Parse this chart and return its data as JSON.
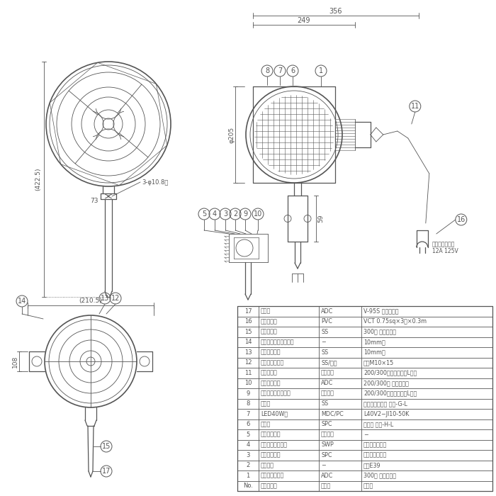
{
  "bg_color": "#ffffff",
  "line_color": "#555555",
  "table_data": [
    [
      "17",
      "バイス",
      "ADC",
      "V-95S グレー履装"
    ],
    [
      "16",
      "電源コード",
      "PVC",
      "VCT 0.75sq×3芯×0.3m"
    ],
    [
      "15",
      "本体取付枚",
      "SS",
      "300型 グレー履装"
    ],
    [
      "14",
      "スプリングワッシャー",
      "−",
      "10mm用"
    ],
    [
      "13",
      "平ワッシャー",
      "SS",
      "10mm用"
    ],
    [
      "12",
      "角度調節ツマミ",
      "SS/樹脂",
      "ノブM10×15"
    ],
    [
      "11",
      "ブッシング",
      "シリコン",
      "200/300型トウ、トウL共通"
    ],
    [
      "10",
      "線止めナット",
      "ADC",
      "200/300型 グレー履装"
    ],
    [
      "9",
      "線止めゴムパッキン",
      "合成ゴム",
      "200/300型トウ、トウL共通"
    ],
    [
      "8",
      "ガード",
      "SS",
      "三価クロメート トウ-G-L"
    ],
    [
      "7",
      "LED40W球",
      "MDC/PC",
      "L40V2−JI10-50K"
    ],
    [
      "6",
      "フード",
      "SPC",
      "白履装 トウ-H-L"
    ],
    [
      "5",
      "防水パッキン",
      "シリコン",
      "−"
    ],
    [
      "4",
      "ソケット押えバネ",
      "SWP",
      "三価クロメート"
    ],
    [
      "3",
      "アースリング",
      "SPC",
      "三価クロメート"
    ],
    [
      "2",
      "ソケット",
      "−",
      "口金E39"
    ],
    [
      "1",
      "ランプホルダー",
      "ADC",
      "300型 グレー履装"
    ],
    [
      "No.",
      "部　品　名",
      "材　貪",
      "備　考"
    ]
  ],
  "dim_356": "356",
  "dim_249": "249",
  "dim_205": "φ205",
  "dim_4225": "(422.5)",
  "dim_73": "73",
  "dim_hole": "3-φ10.8穴",
  "dim_2105": "(210.5)",
  "dim_108": "108",
  "dim_59": "59",
  "plug_text": "ボッキンプラグ\n12A 125V"
}
